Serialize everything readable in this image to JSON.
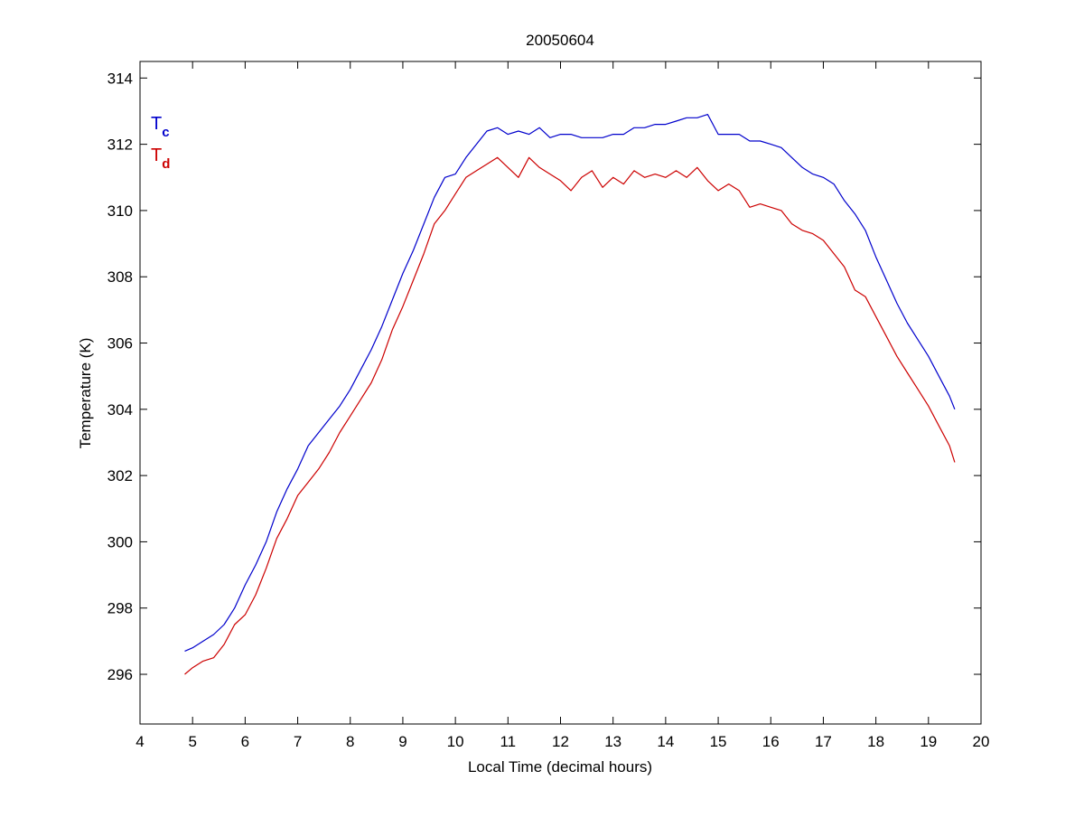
{
  "chart_data": {
    "type": "line",
    "title": "20050604",
    "xlabel": "Local Time (decimal hours)",
    "ylabel": "Temperature (K)",
    "xlim": [
      4,
      20
    ],
    "ylim": [
      294.5,
      314.5
    ],
    "xticks": [
      4,
      5,
      6,
      7,
      8,
      9,
      10,
      11,
      12,
      13,
      14,
      15,
      16,
      17,
      18,
      19,
      20
    ],
    "yticks": [
      296,
      298,
      300,
      302,
      304,
      306,
      308,
      310,
      312,
      314
    ],
    "grid": false,
    "legend_position": "top-left",
    "series": [
      {
        "name_main": "T",
        "name_sub": "c",
        "color": "#0000cc",
        "x": [
          4.85,
          5.0,
          5.2,
          5.4,
          5.6,
          5.8,
          6.0,
          6.2,
          6.4,
          6.6,
          6.8,
          7.0,
          7.2,
          7.4,
          7.6,
          7.8,
          8.0,
          8.2,
          8.4,
          8.6,
          8.8,
          9.0,
          9.2,
          9.4,
          9.6,
          9.8,
          10.0,
          10.2,
          10.4,
          10.6,
          10.8,
          11.0,
          11.2,
          11.4,
          11.6,
          11.8,
          12.0,
          12.2,
          12.4,
          12.6,
          12.8,
          13.0,
          13.2,
          13.4,
          13.6,
          13.8,
          14.0,
          14.2,
          14.4,
          14.6,
          14.8,
          15.0,
          15.2,
          15.4,
          15.6,
          15.8,
          16.0,
          16.2,
          16.4,
          16.6,
          16.8,
          17.0,
          17.2,
          17.4,
          17.6,
          17.8,
          18.0,
          18.2,
          18.4,
          18.6,
          18.8,
          19.0,
          19.2,
          19.4,
          19.5
        ],
        "values": [
          296.7,
          296.8,
          297.0,
          297.2,
          297.5,
          298.0,
          298.7,
          299.3,
          300.0,
          300.9,
          301.6,
          302.2,
          302.9,
          303.3,
          303.7,
          304.1,
          304.6,
          305.2,
          305.8,
          306.5,
          307.3,
          308.1,
          308.8,
          309.6,
          310.4,
          311.0,
          311.1,
          311.6,
          312.0,
          312.4,
          312.5,
          312.3,
          312.4,
          312.3,
          312.5,
          312.2,
          312.3,
          312.3,
          312.2,
          312.2,
          312.2,
          312.3,
          312.3,
          312.5,
          312.5,
          312.6,
          312.6,
          312.7,
          312.8,
          312.8,
          312.9,
          312.3,
          312.3,
          312.3,
          312.1,
          312.1,
          312.0,
          311.9,
          311.6,
          311.3,
          311.1,
          311.0,
          310.8,
          310.3,
          309.9,
          309.4,
          308.6,
          307.9,
          307.2,
          306.6,
          306.1,
          305.6,
          305.0,
          304.4,
          304.0
        ]
      },
      {
        "name_main": "T",
        "name_sub": "d",
        "color": "#cc0000",
        "x": [
          4.85,
          5.0,
          5.2,
          5.4,
          5.6,
          5.8,
          6.0,
          6.2,
          6.4,
          6.6,
          6.8,
          7.0,
          7.2,
          7.4,
          7.6,
          7.8,
          8.0,
          8.2,
          8.4,
          8.6,
          8.8,
          9.0,
          9.2,
          9.4,
          9.6,
          9.8,
          10.0,
          10.2,
          10.4,
          10.6,
          10.8,
          11.0,
          11.2,
          11.4,
          11.6,
          11.8,
          12.0,
          12.2,
          12.4,
          12.6,
          12.8,
          13.0,
          13.2,
          13.4,
          13.6,
          13.8,
          14.0,
          14.2,
          14.4,
          14.6,
          14.8,
          15.0,
          15.2,
          15.4,
          15.6,
          15.8,
          16.0,
          16.2,
          16.4,
          16.6,
          16.8,
          17.0,
          17.2,
          17.4,
          17.6,
          17.8,
          18.0,
          18.2,
          18.4,
          18.6,
          18.8,
          19.0,
          19.2,
          19.4,
          19.5
        ],
        "values": [
          296.0,
          296.2,
          296.4,
          296.5,
          296.9,
          297.5,
          297.8,
          298.4,
          299.2,
          300.1,
          300.7,
          301.4,
          301.8,
          302.2,
          302.7,
          303.3,
          303.8,
          304.3,
          304.8,
          305.5,
          306.4,
          307.1,
          307.9,
          308.7,
          309.6,
          310.0,
          310.5,
          311.0,
          311.2,
          311.4,
          311.6,
          311.3,
          311.0,
          311.6,
          311.3,
          311.1,
          310.9,
          310.6,
          311.0,
          311.2,
          310.7,
          311.0,
          310.8,
          311.2,
          311.0,
          311.1,
          311.0,
          311.2,
          311.0,
          311.3,
          310.9,
          310.6,
          310.8,
          310.6,
          310.1,
          310.2,
          310.1,
          310.0,
          309.6,
          309.4,
          309.3,
          309.1,
          308.7,
          308.3,
          307.6,
          307.4,
          306.8,
          306.2,
          305.6,
          305.1,
          304.6,
          304.1,
          303.5,
          302.9,
          302.4
        ]
      }
    ]
  }
}
